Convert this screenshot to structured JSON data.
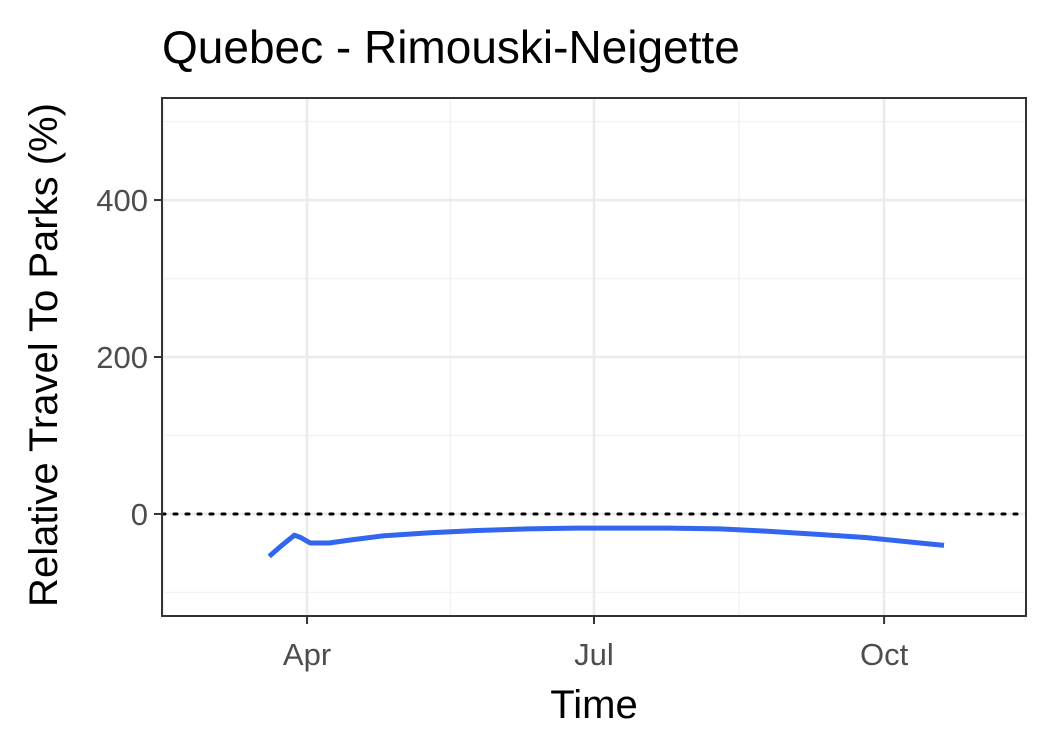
{
  "chart_data": {
    "type": "line",
    "title": "Quebec - Rimouski-Neigette",
    "xlabel": "Time",
    "ylabel": "Relative Travel To Parks (%)",
    "x_ticks": [
      "Apr",
      "Jul",
      "Oct"
    ],
    "x_tick_dates": [
      "2020-04-01",
      "2020-07-01",
      "2020-10-01"
    ],
    "xlim": [
      "2020-02-15",
      "2020-11-15"
    ],
    "ylim": [
      -130,
      530
    ],
    "y_ticks": [
      0,
      200,
      400
    ],
    "grid": true,
    "reference_line": {
      "y": 0,
      "style": "dotted"
    },
    "series": [
      {
        "color": "#3366ee",
        "x": [
          "2020-03-20",
          "2020-03-24",
          "2020-03-28",
          "2020-03-30",
          "2020-04-02",
          "2020-04-08",
          "2020-04-15",
          "2020-04-25",
          "2020-05-10",
          "2020-05-25",
          "2020-06-10",
          "2020-06-25",
          "2020-07-10",
          "2020-07-25",
          "2020-08-10",
          "2020-08-25",
          "2020-09-10",
          "2020-09-25",
          "2020-10-10",
          "2020-10-20"
        ],
        "y": [
          -54,
          -40,
          -27,
          -30,
          -37,
          -37,
          -33,
          -28,
          -24,
          -21,
          -19,
          -18,
          -18,
          -18,
          -19,
          -22,
          -26,
          -30,
          -36,
          -40
        ]
      }
    ]
  }
}
